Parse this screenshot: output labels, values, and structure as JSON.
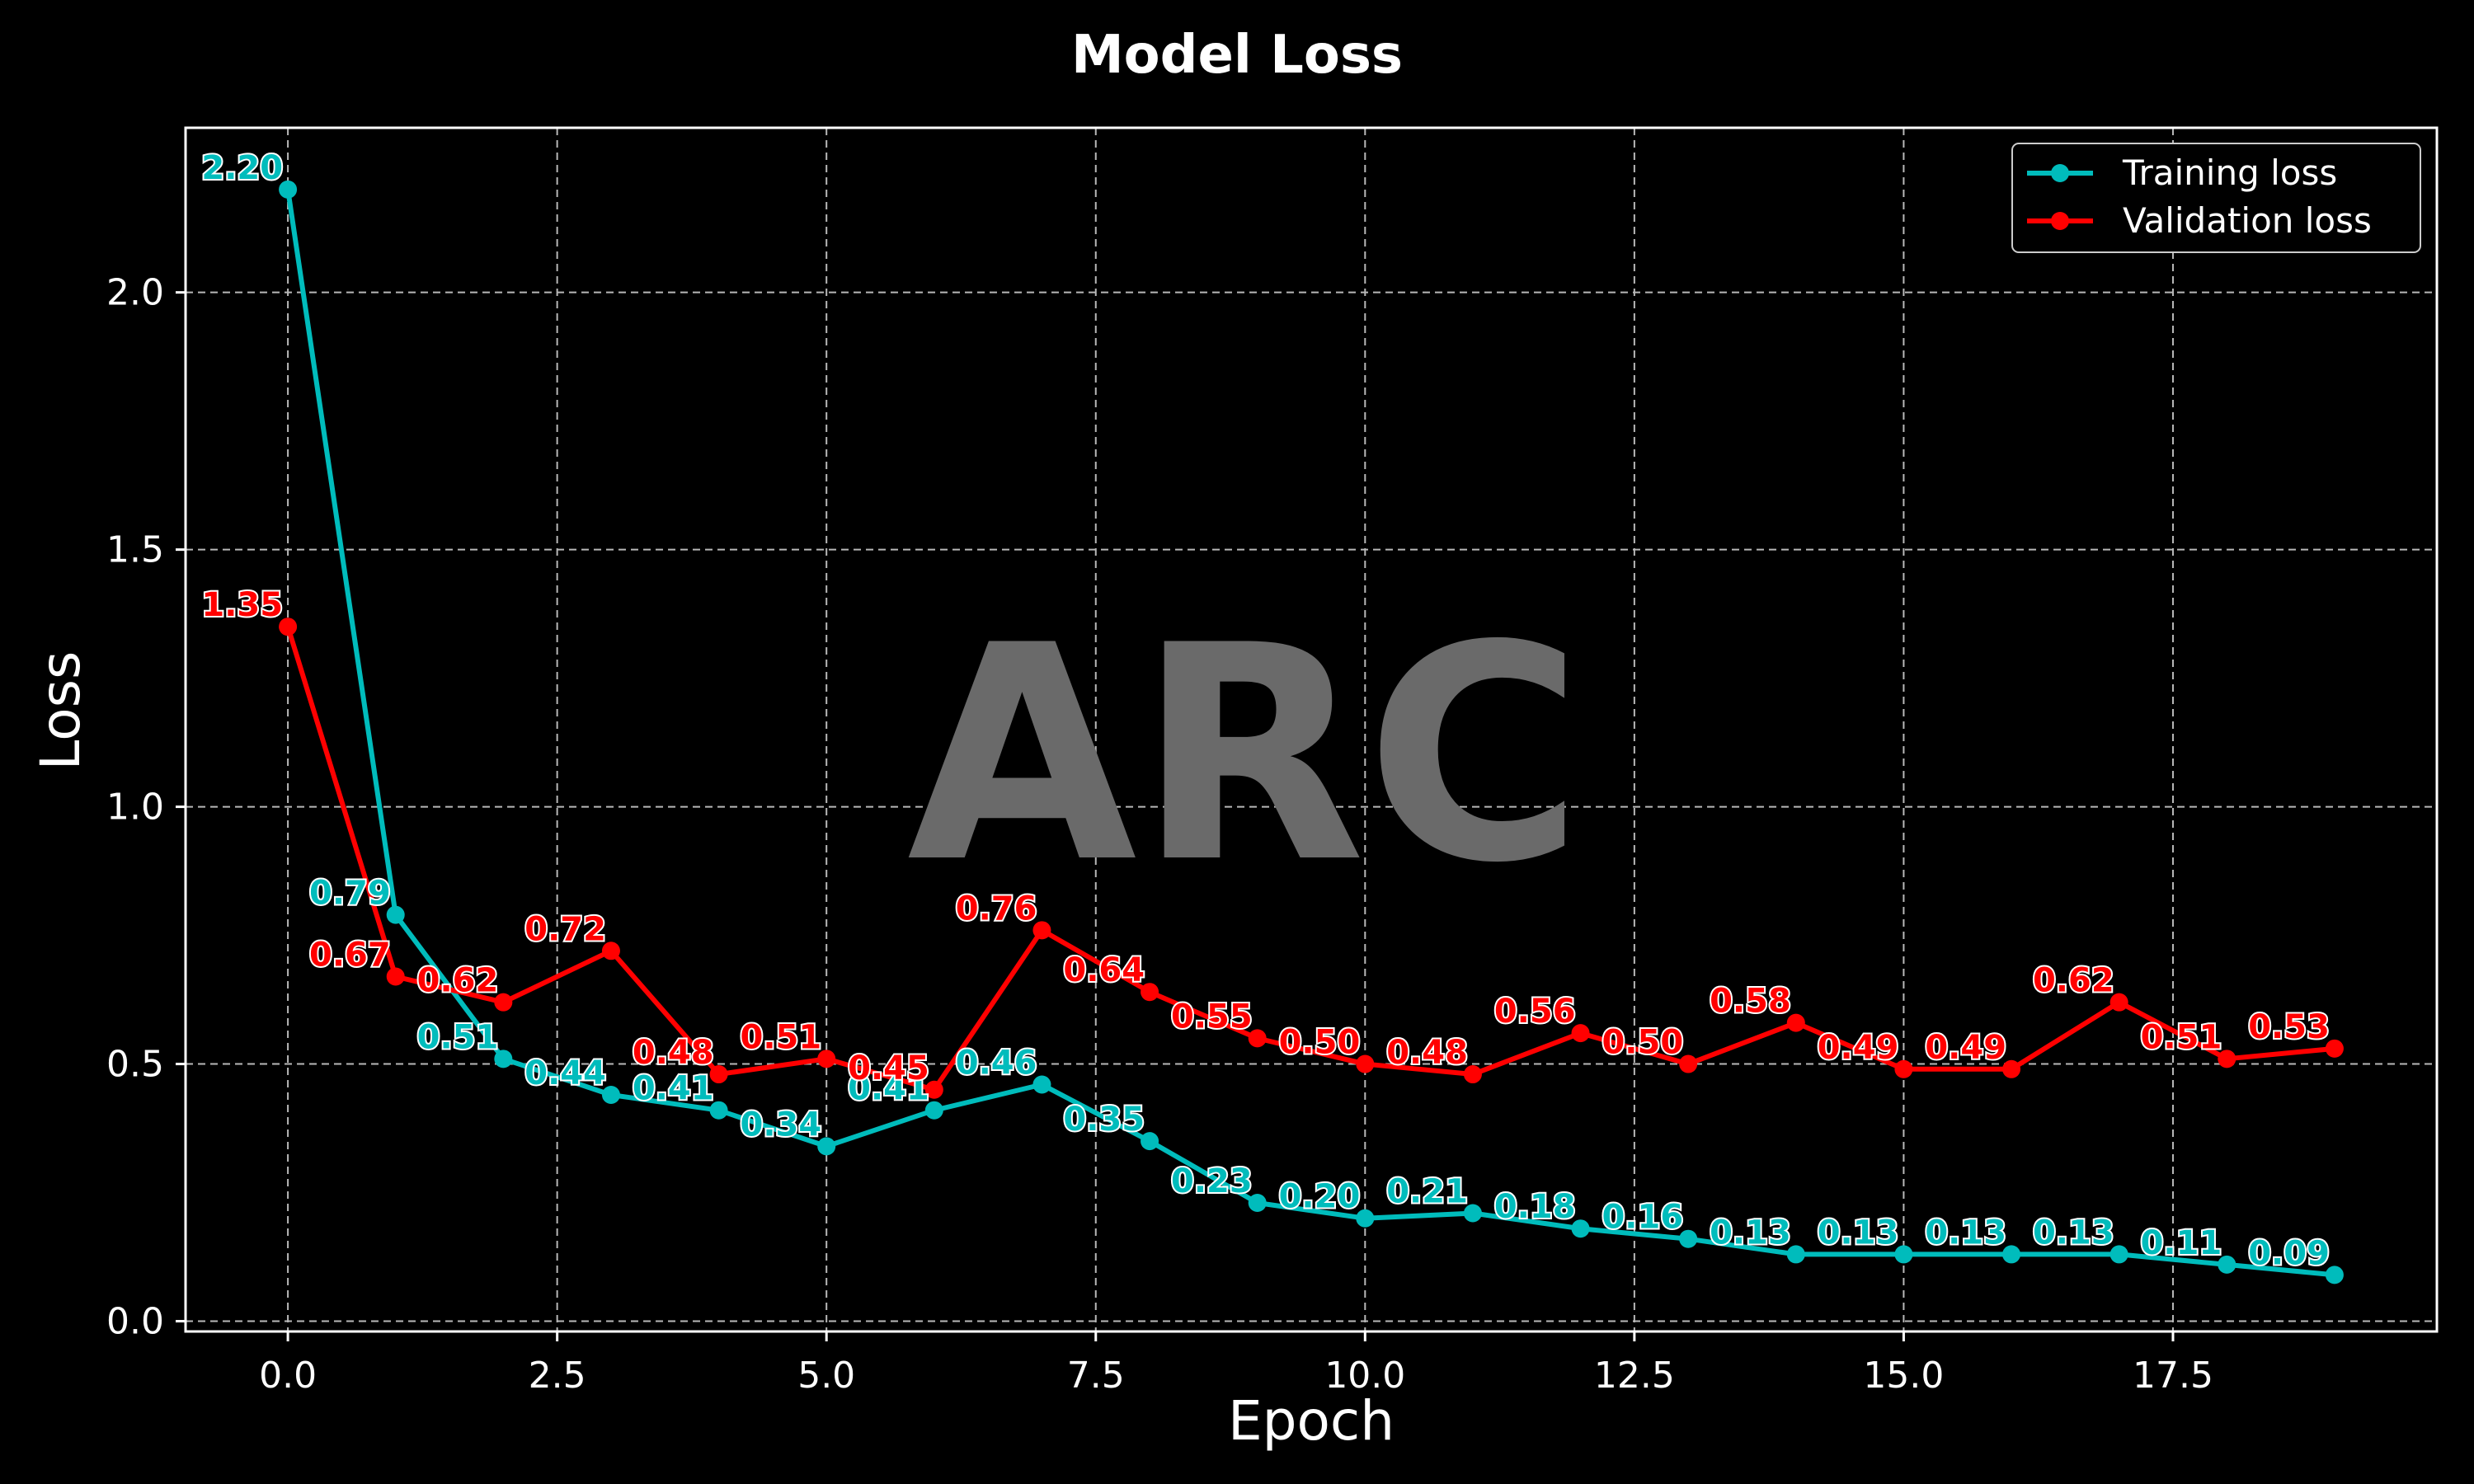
{
  "chart_data": {
    "type": "line",
    "title": "Model Loss",
    "xlabel": "Epoch",
    "ylabel": "Loss",
    "xlim": [
      -0.95,
      19.95
    ],
    "ylim": [
      -0.02,
      2.32
    ],
    "x_ticks": [
      0.0,
      2.5,
      5.0,
      7.5,
      10.0,
      12.5,
      15.0,
      17.5
    ],
    "x_tick_labels": [
      "0.0",
      "2.5",
      "5.0",
      "7.5",
      "10.0",
      "12.5",
      "15.0",
      "17.5"
    ],
    "y_ticks": [
      0.0,
      0.5,
      1.0,
      1.5,
      2.0
    ],
    "y_tick_labels": [
      "0.0",
      "0.5",
      "1.0",
      "1.5",
      "2.0"
    ],
    "grid": true,
    "legend_position": "top-right",
    "background_color": "#000000",
    "watermark": "ARC",
    "x": [
      0,
      1,
      2,
      3,
      4,
      5,
      6,
      7,
      8,
      9,
      10,
      11,
      12,
      13,
      14,
      15,
      16,
      17,
      18,
      19
    ],
    "series": [
      {
        "name": "Training loss",
        "color": "#00bcbc",
        "marker": "circle",
        "values": [
          2.2,
          0.79,
          0.51,
          0.44,
          0.41,
          0.34,
          0.41,
          0.46,
          0.35,
          0.23,
          0.2,
          0.21,
          0.18,
          0.16,
          0.13,
          0.13,
          0.13,
          0.13,
          0.11,
          0.09
        ],
        "labels": [
          "2.20",
          "0.79",
          "0.51",
          "0.44",
          "0.41",
          "0.34",
          "0.41",
          "0.46",
          "0.35",
          "0.23",
          "0.20",
          "0.21",
          "0.18",
          "0.16",
          "0.13",
          "0.13",
          "0.13",
          "0.13",
          "0.11",
          "0.09"
        ]
      },
      {
        "name": "Validation loss",
        "color": "#ff0000",
        "marker": "circle",
        "values": [
          1.35,
          0.67,
          0.62,
          0.72,
          0.48,
          0.51,
          0.45,
          0.76,
          0.64,
          0.55,
          0.5,
          0.48,
          0.56,
          0.5,
          0.58,
          0.49,
          0.49,
          0.62,
          0.51,
          0.53
        ],
        "labels": [
          "1.35",
          "0.67",
          "0.62",
          "0.72",
          "0.48",
          "0.51",
          "0.45",
          "0.76",
          "0.64",
          "0.55",
          "0.50",
          "0.48",
          "0.56",
          "0.50",
          "0.58",
          "0.49",
          "0.49",
          "0.62",
          "0.51",
          "0.53"
        ]
      }
    ]
  }
}
